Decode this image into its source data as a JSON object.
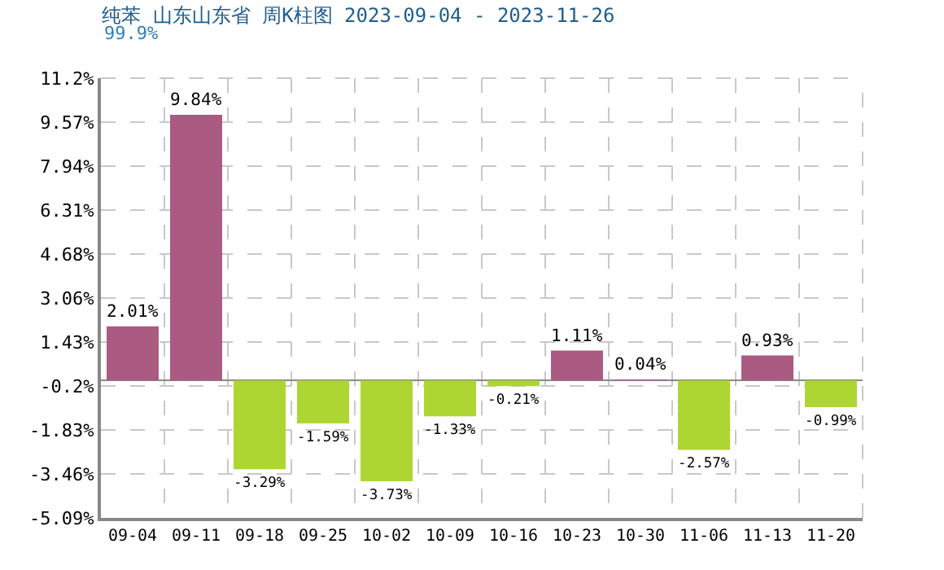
{
  "chart_data": {
    "type": "bar",
    "title": "纯苯 山东山东省 周K柱图 2023-09-04 - 2023-11-26",
    "subtitle": "99.9%",
    "categories": [
      "09-04",
      "09-11",
      "09-18",
      "09-25",
      "10-02",
      "10-09",
      "10-16",
      "10-23",
      "10-30",
      "11-06",
      "11-13",
      "11-20"
    ],
    "values": [
      2.01,
      9.84,
      -3.29,
      -1.59,
      -3.73,
      -1.33,
      -0.21,
      1.11,
      0.04,
      -2.57,
      0.93,
      -0.99
    ],
    "colors": [
      "#ab5a82",
      "#ab5a82",
      "#add633",
      "#add633",
      "#add633",
      "#add633",
      "#add633",
      "#ab5a82",
      "#ab5a82",
      "#add633",
      "#ab5a82",
      "#add633"
    ],
    "value_labels": [
      "2.01%",
      "9.84%",
      "-3.29%",
      "-1.59%",
      "-3.73%",
      "-1.33%",
      "-0.21%",
      "1.11%",
      "0.04%",
      "-2.57%",
      "0.93%",
      "-0.99%"
    ],
    "ylim": [
      -5.09,
      11.2
    ],
    "yticks": [
      {
        "value": 11.2,
        "label": "11.2%"
      },
      {
        "value": 9.57,
        "label": "9.57%"
      },
      {
        "value": 7.94,
        "label": "7.94%"
      },
      {
        "value": 6.31,
        "label": "6.31%"
      },
      {
        "value": 4.68,
        "label": "4.68%"
      },
      {
        "value": 3.06,
        "label": "3.06%"
      },
      {
        "value": 1.43,
        "label": "1.43%"
      },
      {
        "value": -0.2,
        "label": "-0.2%"
      },
      {
        "value": -1.83,
        "label": "-1.83%"
      },
      {
        "value": -3.46,
        "label": "-3.46%"
      },
      {
        "value": -5.09,
        "label": "-5.09%"
      }
    ],
    "grid": true,
    "legend": false
  }
}
